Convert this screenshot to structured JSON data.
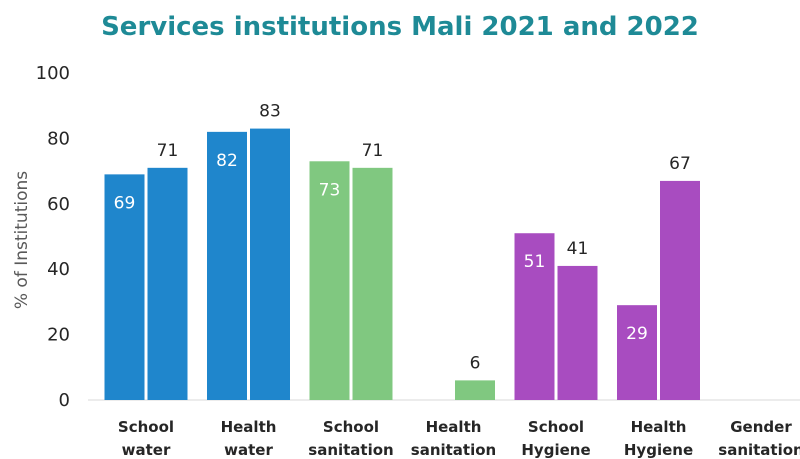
{
  "chart_data": {
    "type": "bar",
    "title": "Services institutions Mali 2021 and 2022",
    "ylabel": "% of Institutions",
    "xlabel": "",
    "ylim": [
      0,
      100
    ],
    "yticks": [
      0,
      20,
      40,
      60,
      80,
      100
    ],
    "grid": false,
    "legend": "none",
    "categories": [
      {
        "lines": [
          "School",
          "water"
        ],
        "color": "#1f86cc",
        "values": [
          69,
          71
        ],
        "labels_inside": [
          true,
          false
        ]
      },
      {
        "lines": [
          "Health",
          "water"
        ],
        "color": "#1f86cc",
        "values": [
          82,
          83
        ],
        "labels_inside": [
          true,
          false
        ]
      },
      {
        "lines": [
          "School",
          "sanitation"
        ],
        "color": "#80c880",
        "values": [
          73,
          71
        ],
        "labels_inside": [
          true,
          false
        ]
      },
      {
        "lines": [
          "Health",
          "sanitation"
        ],
        "color": "#80c880",
        "values": [
          null,
          6
        ],
        "labels_inside": [
          false,
          false
        ]
      },
      {
        "lines": [
          "School",
          "Hygiene"
        ],
        "color": "#a84cc0",
        "values": [
          51,
          41
        ],
        "labels_inside": [
          true,
          false
        ]
      },
      {
        "lines": [
          "Health",
          "Hygiene"
        ],
        "color": "#a84cc0",
        "values": [
          29,
          67
        ],
        "labels_inside": [
          true,
          false
        ]
      },
      {
        "lines": [
          "Gender",
          "sanitation"
        ],
        "color": "#a84cc0",
        "values": [
          null,
          null
        ],
        "labels_inside": [
          false,
          false
        ]
      }
    ]
  }
}
